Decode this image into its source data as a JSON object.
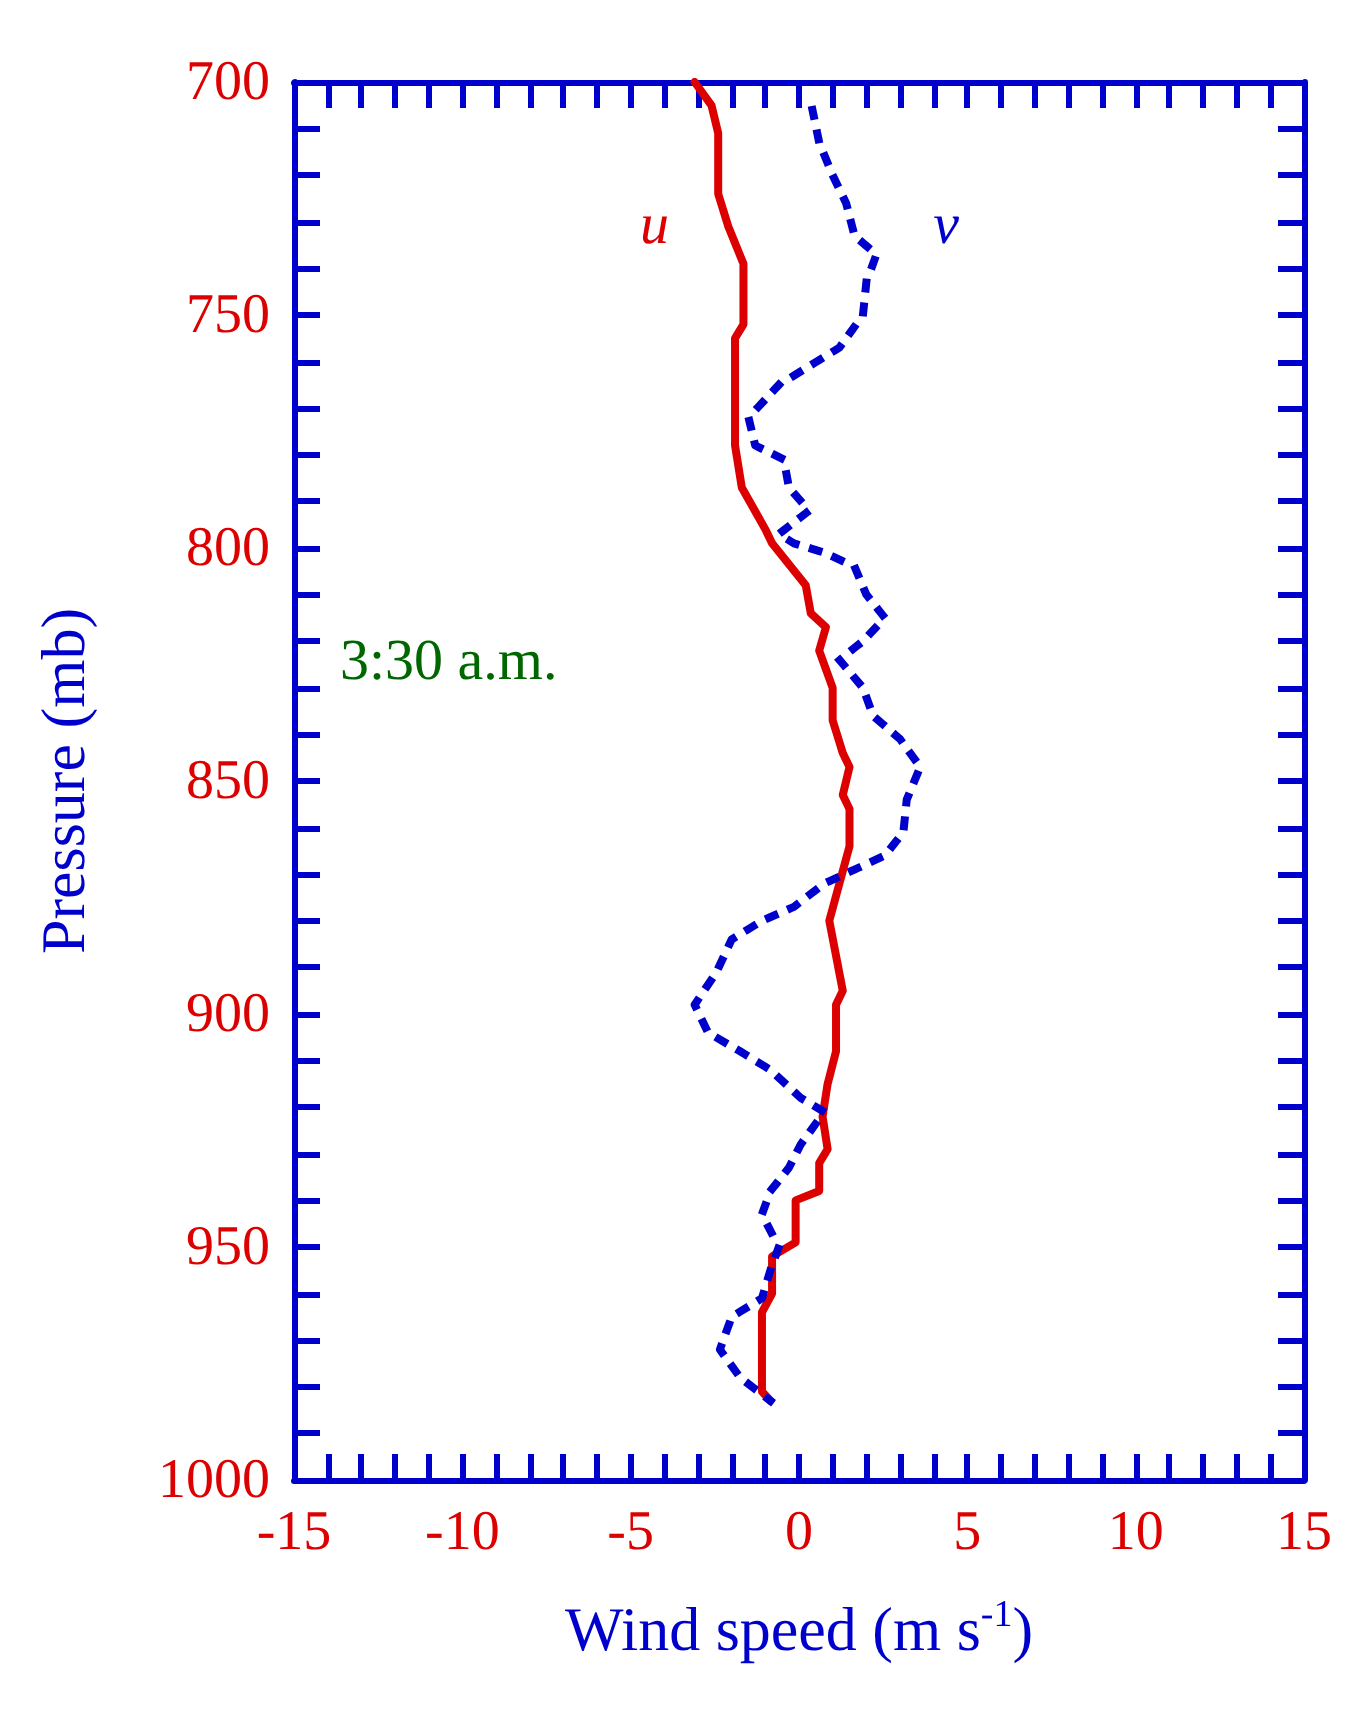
{
  "chart_data": {
    "type": "line",
    "xlabel": "Wind speed (m s$^{-1}$)",
    "ylabel": "Pressure (mb)",
    "xlim": [
      -15,
      15
    ],
    "ylim": [
      1000,
      700
    ],
    "xticks": [
      -15,
      {
        "value": -14,
        "label": null
      },
      {
        "value": -13,
        "label": null
      },
      {
        "value": -12,
        "label": null
      },
      {
        "value": -11,
        "label": null
      },
      -10,
      {
        "value": -9,
        "label": null
      },
      {
        "value": -8,
        "label": null
      },
      {
        "value": -7,
        "label": null
      },
      {
        "value": -6,
        "label": null
      },
      -5,
      {
        "value": -4,
        "label": null
      },
      {
        "value": -3,
        "label": null
      },
      {
        "value": -2,
        "label": null
      },
      {
        "value": -1,
        "label": null
      },
      0,
      {
        "value": 1,
        "label": null
      },
      {
        "value": 2,
        "label": null
      },
      {
        "value": 3,
        "label": null
      },
      {
        "value": 4,
        "label": null
      },
      5,
      {
        "value": 6,
        "label": null
      },
      {
        "value": 7,
        "label": null
      },
      {
        "value": 8,
        "label": null
      },
      {
        "value": 9,
        "label": null
      },
      10,
      {
        "value": 11,
        "label": null
      },
      {
        "value": 12,
        "label": null
      },
      {
        "value": 13,
        "label": null
      },
      {
        "value": 14,
        "label": null
      },
      15
    ],
    "yticks": [
      700,
      {
        "value": 710,
        "label": null
      },
      {
        "value": 720,
        "label": null
      },
      {
        "value": 730,
        "label": null
      },
      {
        "value": 740,
        "label": null
      },
      750,
      {
        "value": 760,
        "label": null
      },
      {
        "value": 770,
        "label": null
      },
      {
        "value": 780,
        "label": null
      },
      {
        "value": 790,
        "label": null
      },
      800,
      {
        "value": 810,
        "label": null
      },
      {
        "value": 820,
        "label": null
      },
      {
        "value": 830,
        "label": null
      },
      {
        "value": 840,
        "label": null
      },
      850,
      {
        "value": 860,
        "label": null
      },
      {
        "value": 870,
        "label": null
      },
      {
        "value": 880,
        "label": null
      },
      {
        "value": 890,
        "label": null
      },
      900,
      {
        "value": 910,
        "label": null
      },
      {
        "value": 920,
        "label": null
      },
      {
        "value": 930,
        "label": null
      },
      {
        "value": 940,
        "label": null
      },
      950,
      {
        "value": 960,
        "label": null
      },
      {
        "value": 970,
        "label": null
      },
      {
        "value": 980,
        "label": null
      },
      {
        "value": 990,
        "label": null
      },
      1000
    ],
    "series": [
      {
        "name": "u",
        "color": "#dd0000",
        "line_style": "solid",
        "x": [
          -3.1,
          -2.6,
          -2.4,
          -2.4,
          -2.1,
          -1.65,
          -1.65,
          -1.9,
          -1.9,
          -1.7,
          -1.0,
          -0.8,
          0.2,
          0.35,
          0.8,
          0.6,
          1.0,
          1.0,
          1.3,
          1.5,
          1.3,
          1.5,
          1.5,
          0.9,
          1.3,
          1.1,
          1.1,
          0.85,
          0.7,
          0.85,
          0.6,
          0.6,
          -0.1,
          -0.1,
          -0.8,
          -0.8,
          -1.1,
          -1.1,
          -0.85
        ],
        "values": [
          700,
          705,
          711,
          724,
          731,
          739,
          752,
          755,
          778,
          787,
          796,
          799,
          808,
          814,
          817,
          822,
          830,
          837,
          844,
          847,
          853,
          856,
          864,
          880,
          895,
          898,
          908,
          915,
          922,
          929,
          932,
          938,
          940,
          949,
          952,
          960,
          964,
          981,
          983
        ]
      },
      {
        "name": "v",
        "color": "#0000cc",
        "line_style": "dotted",
        "x": [
          0.4,
          0.6,
          1.0,
          1.4,
          1.65,
          2.3,
          2.0,
          1.9,
          1.2,
          0.3,
          -0.6,
          -1.5,
          -1.3,
          -0.45,
          -0.3,
          0.3,
          -0.6,
          -0.15,
          0.75,
          1.65,
          2.0,
          2.55,
          1.9,
          1.2,
          1.9,
          2.2,
          3.0,
          3.6,
          3.2,
          3.1,
          2.55,
          1.65,
          0.75,
          -0.15,
          -1.1,
          -2.0,
          -2.45,
          -3.1,
          -2.7,
          -1.75,
          -0.85,
          0.05,
          0.75,
          0.05,
          -0.3,
          -0.85,
          -1.1,
          -0.6,
          -0.85,
          -1.1,
          -2.0,
          -2.35,
          -1.75,
          -0.85
        ],
        "values": [
          706,
          713,
          720,
          726,
          733,
          737,
          743,
          750,
          757,
          761,
          765,
          772,
          778,
          781,
          787,
          792,
          797,
          799,
          801,
          804,
          810,
          815,
          820,
          824,
          830,
          836,
          841,
          847,
          854,
          861,
          866,
          869,
          872,
          877,
          880,
          884,
          891,
          898,
          904,
          908,
          912,
          918,
          921,
          928,
          933,
          938,
          943,
          950,
          955,
          961,
          965,
          972,
          978,
          983
        ]
      }
    ],
    "marker": "none",
    "legend": false,
    "grid": false,
    "annotations": [
      "3:30 a.m."
    ]
  }
}
